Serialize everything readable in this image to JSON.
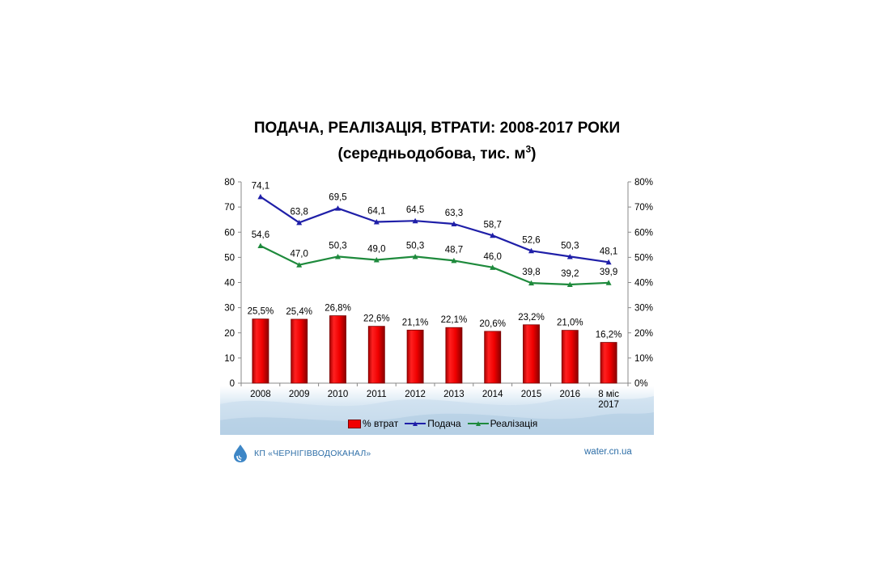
{
  "title": {
    "line1": "ПОДАЧА, РЕАЛІЗАЦІЯ, ВТРАТИ:  2008-2017 РОКИ",
    "line2": "(середньодобова, тис. м",
    "line2_sup": "3",
    "line2_end": ")"
  },
  "chart_data": {
    "type": "bar",
    "categories": [
      "2008",
      "2009",
      "2010",
      "2011",
      "2012",
      "2013",
      "2014",
      "2015",
      "2016",
      "8 міс 2017"
    ],
    "category_lines": [
      [
        "2008"
      ],
      [
        "2009"
      ],
      [
        "2010"
      ],
      [
        "2011"
      ],
      [
        "2012"
      ],
      [
        "2013"
      ],
      [
        "2014"
      ],
      [
        "2015"
      ],
      [
        "2016"
      ],
      [
        "8 міс",
        "2017"
      ]
    ],
    "series": [
      {
        "name": "% втрат",
        "type": "bar",
        "axis": "right",
        "values": [
          25.5,
          25.4,
          26.8,
          22.6,
          21.1,
          22.1,
          20.6,
          23.2,
          21.0,
          16.2
        ],
        "labels": [
          "25,5%",
          "25,4%",
          "26,8%",
          "22,6%",
          "21,1%",
          "22,1%",
          "20,6%",
          "23,2%",
          "21,0%",
          "16,2%"
        ],
        "color": "#f00000"
      },
      {
        "name": "Подача",
        "type": "line",
        "axis": "left",
        "values": [
          74.1,
          63.8,
          69.5,
          64.1,
          64.5,
          63.3,
          58.7,
          52.6,
          50.3,
          48.1
        ],
        "labels": [
          "74,1",
          "63,8",
          "69,5",
          "64,1",
          "64,5",
          "63,3",
          "58,7",
          "52,6",
          "50,3",
          "48,1"
        ],
        "color": "#1f1fa8"
      },
      {
        "name": "Реалізація",
        "type": "line",
        "axis": "left",
        "values": [
          54.6,
          47.0,
          50.3,
          49.0,
          50.3,
          48.7,
          46.0,
          39.8,
          39.2,
          39.9
        ],
        "labels": [
          "54,6",
          "47,0",
          "50,3",
          "49,0",
          "50,3",
          "48,7",
          "46,0",
          "39,8",
          "39,2",
          "39,9"
        ],
        "color": "#1e8a3c"
      }
    ],
    "y_left": {
      "min": 0,
      "max": 80,
      "ticks": [
        "0",
        "10",
        "20",
        "30",
        "40",
        "50",
        "60",
        "70",
        "80"
      ]
    },
    "y_right": {
      "min": 0,
      "max": 80,
      "ticks": [
        "0%",
        "10%",
        "20%",
        "30%",
        "40%",
        "50%",
        "60%",
        "70%",
        "80%"
      ]
    },
    "grid": false,
    "legend_position": "bottom"
  },
  "footer": {
    "org": "КП «ЧЕРНІГІВВОДОКАНАЛ»",
    "url": "water.cn.ua"
  },
  "colors": {
    "bar_fill": "#f00000",
    "bar_dark": "#7a0000",
    "supply": "#1f1fa8",
    "sales": "#1e8a3c",
    "brand": "#2f6fa8"
  }
}
